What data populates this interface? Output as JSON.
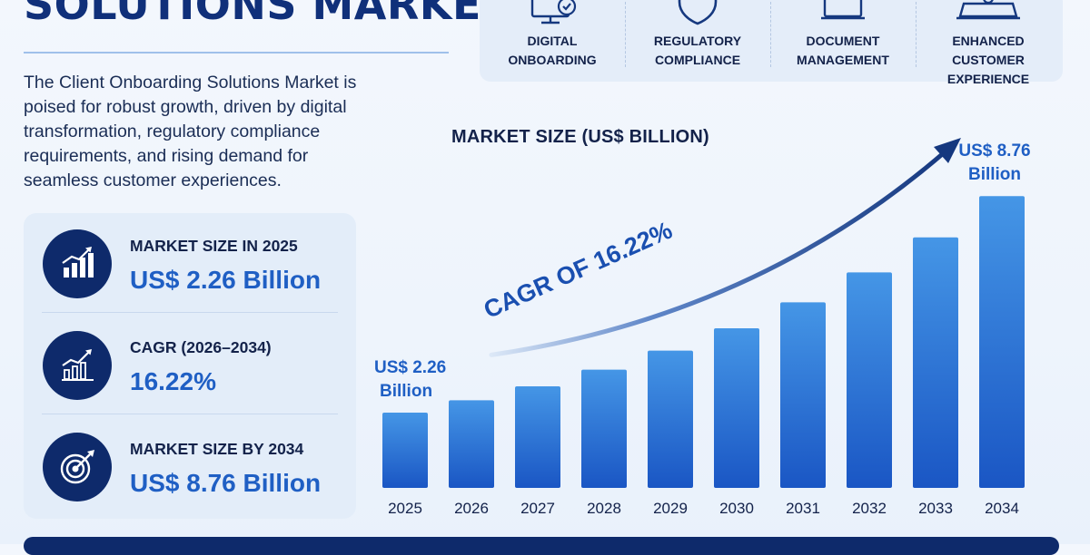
{
  "page": {
    "title": "SOLUTIONS MARKET",
    "intro": "The Client Onboarding Solutions Market is poised for robust growth, driven by digital transformation, regulatory compliance requirements, and rising demand for seamless customer experiences."
  },
  "stats": [
    {
      "label": "MARKET SIZE IN 2025",
      "value": "US$ 2.26 Billion",
      "icon": "bar-chart-growth-icon"
    },
    {
      "label": "CAGR (2026–2034)",
      "value": "16.22%",
      "icon": "trend-chart-icon"
    },
    {
      "label": "MARKET SIZE BY 2034",
      "value": "US$ 8.76 Billion",
      "icon": "target-arrow-icon"
    }
  ],
  "features": [
    {
      "label_line1": "DIGITAL",
      "label_line2": "ONBOARDING",
      "icon": "monitor-check-icon"
    },
    {
      "label_line1": "REGULATORY",
      "label_line2": "COMPLIANCE",
      "icon": "shield-icon"
    },
    {
      "label_line1": "DOCUMENT",
      "label_line2": "MANAGEMENT",
      "icon": "document-icon"
    },
    {
      "label_line1": "ENHANCED CUSTOMER",
      "label_line2": "EXPERIENCE",
      "icon": "users-icon"
    }
  ],
  "colors": {
    "navy": "#0e2a6b",
    "accent_blue": "#1f5fc4",
    "bar_top": "#4596e6",
    "bar_bottom": "#1a56c4"
  },
  "chart_data": {
    "type": "bar",
    "title": "MARKET SIZE (US$ BILLION)",
    "categories": [
      "2025",
      "2026",
      "2027",
      "2028",
      "2029",
      "2030",
      "2031",
      "2032",
      "2033",
      "2034"
    ],
    "values": [
      2.26,
      2.63,
      3.05,
      3.55,
      4.12,
      4.79,
      5.57,
      6.47,
      7.52,
      8.76
    ],
    "ylim": [
      0,
      9.8
    ],
    "grid": false,
    "annotations": {
      "start_label_line1": "US$ 2.26",
      "start_label_line2": "Billion",
      "end_label_line1": "US$ 8.76",
      "end_label_line2": "Billion",
      "trend_label": "CAGR OF 16.22%"
    }
  }
}
